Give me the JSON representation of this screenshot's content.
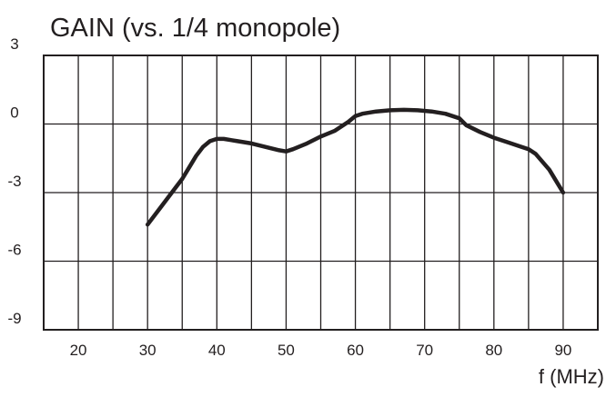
{
  "chart_data": {
    "type": "line",
    "title": "GAIN  (vs.  1/4  monopole)",
    "xlabel": "f (MHz)",
    "ylabel": "",
    "xlim": [
      15,
      95
    ],
    "ylim": [
      -9,
      3
    ],
    "x_tick_labels": [
      "20",
      "30",
      "40",
      "50",
      "60",
      "70",
      "80",
      "90"
    ],
    "y_tick_labels": [
      "3",
      "0",
      "-3",
      "-6",
      "-9"
    ],
    "grid": true,
    "series": [
      {
        "x": [
          30,
          32,
          34,
          35,
          36,
          37,
          38,
          39,
          40,
          41,
          43,
          45,
          47,
          49,
          50,
          51,
          53,
          55,
          57,
          59,
          60,
          61,
          63,
          65,
          67,
          69,
          71,
          73,
          75,
          76,
          78,
          80,
          82,
          84,
          85,
          86,
          88,
          90
        ],
        "values": [
          -4.4,
          -3.6,
          -2.8,
          -2.4,
          -1.9,
          -1.4,
          -1.0,
          -0.75,
          -0.65,
          -0.65,
          -0.75,
          -0.85,
          -1.0,
          -1.15,
          -1.2,
          -1.1,
          -0.85,
          -0.55,
          -0.3,
          0.1,
          0.35,
          0.45,
          0.55,
          0.6,
          0.62,
          0.6,
          0.55,
          0.45,
          0.25,
          -0.05,
          -0.35,
          -0.6,
          -0.8,
          -1.0,
          -1.1,
          -1.3,
          -2.0,
          -3.0
        ]
      }
    ]
  }
}
